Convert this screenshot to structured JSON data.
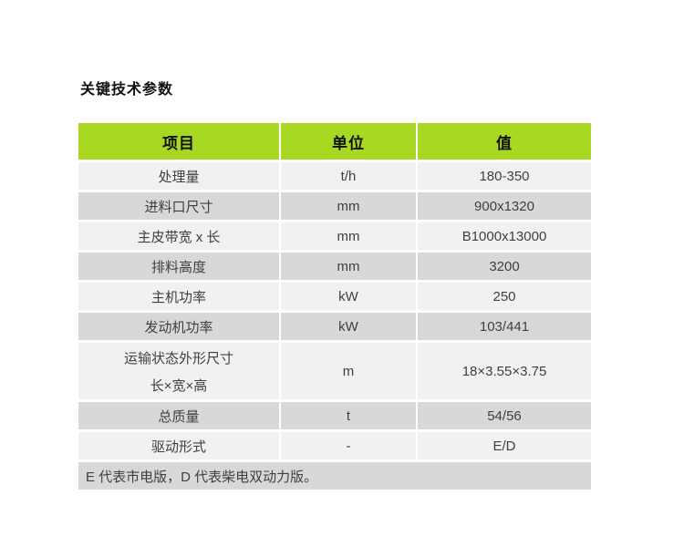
{
  "page": {
    "title": "关键技术参数"
  },
  "colors": {
    "header_green": "#a8d822",
    "row_light": "#f1f1f1",
    "row_dark": "#d8d8d8",
    "body_text": "#3f3f3f"
  },
  "table": {
    "headers": {
      "item": "项目",
      "unit": "单位",
      "value": "值"
    },
    "rows": [
      {
        "item": "处理量",
        "unit": "t/h",
        "value": "180-350"
      },
      {
        "item": "进料口尺寸",
        "unit": "mm",
        "value": "900x1320"
      },
      {
        "item": "主皮带宽 x 长",
        "unit": "mm",
        "value": "B1000x13000"
      },
      {
        "item": "排料高度",
        "unit": "mm",
        "value": "3200"
      },
      {
        "item": "主机功率",
        "unit": "kW",
        "value": "250"
      },
      {
        "item": "发动机功率",
        "unit": "kW",
        "value": "103/441"
      },
      {
        "item": "运输状态外形尺寸",
        "item_line2": "长×宽×高",
        "unit": "m",
        "value": "18×3.55×3.75"
      },
      {
        "item": "总质量",
        "unit": "t",
        "value": "54/56"
      },
      {
        "item": "驱动形式",
        "unit": "-",
        "value": "E/D"
      }
    ],
    "footnote": "E 代表市电版，D 代表柴电双动力版。"
  }
}
